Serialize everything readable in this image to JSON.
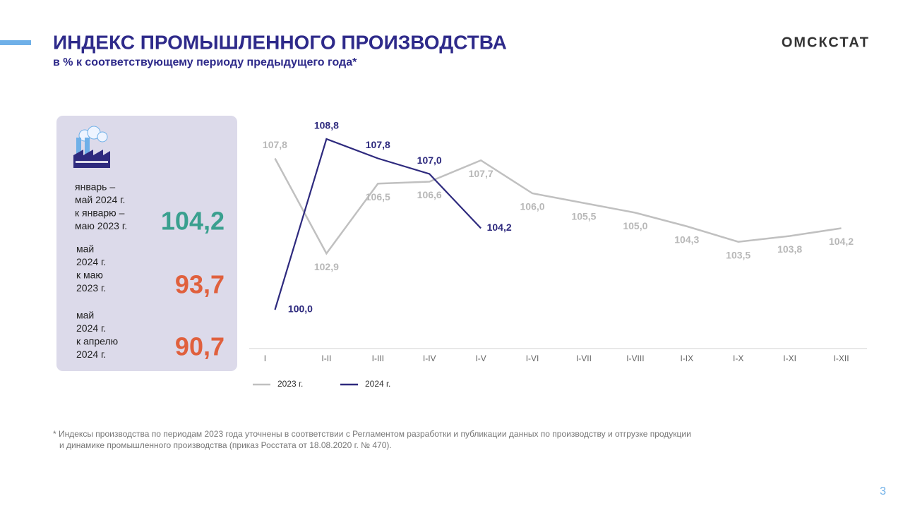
{
  "header": {
    "title": "ИНДЕКС ПРОМЫШЛЕННОГО  ПРОИЗВОДСТВА",
    "subtitle": "в % к соответствующему периоду предыдущего года*",
    "logo": "ОМСКСТАТ"
  },
  "panel": [
    {
      "caption": [
        "январь –",
        "май 2024 г.",
        "к январю –",
        "маю 2023 г."
      ],
      "value": "104,2"
    },
    {
      "caption": [
        "май",
        "2024 г.",
        "к маю",
        "2023 г."
      ],
      "value": "93,7"
    },
    {
      "caption": [
        "май",
        "2024 г.",
        "к апрелю",
        "2024 г."
      ],
      "value": "90,7"
    }
  ],
  "chart_data": {
    "type": "line",
    "categories": [
      "I",
      "I-II",
      "I-III",
      "I-IV",
      "I-V",
      "I-VI",
      "I-VII",
      "I-VIII",
      "I-IX",
      "I-X",
      "I-XI",
      "I-XII"
    ],
    "ylim": [
      98,
      110
    ],
    "series": [
      {
        "name": "2023 г.",
        "color": "#c0c0c0",
        "values": [
          107.8,
          102.9,
          106.5,
          106.6,
          107.7,
          106.0,
          105.5,
          105.0,
          104.3,
          103.5,
          103.8,
          104.2
        ],
        "value_labels": [
          "107,8",
          "102,9",
          "106,5",
          "106,6",
          "107,7",
          "106,0",
          "105,5",
          "105,0",
          "104,3",
          "103,5",
          "103,8",
          "104,2"
        ]
      },
      {
        "name": "2024 г.",
        "color": "#2e2a7e",
        "values": [
          100.0,
          108.8,
          107.8,
          107.0,
          104.2,
          null,
          null,
          null,
          null,
          null,
          null,
          null
        ],
        "value_labels": [
          "100,0",
          "108,8",
          "107,8",
          "107,0",
          "104,2",
          null,
          null,
          null,
          null,
          null,
          null,
          null
        ]
      }
    ]
  },
  "footnote": [
    "* Индексы производства  по периодам 2023 года уточнены  в соответствии   с Регламентом  разработки  и публикации  данных по  производству и отгрузке продукции",
    "и динамике  промышленного  производства  (приказ Росстата  от  18.08.2020 г. № 470)."
  ],
  "page_number": "3"
}
